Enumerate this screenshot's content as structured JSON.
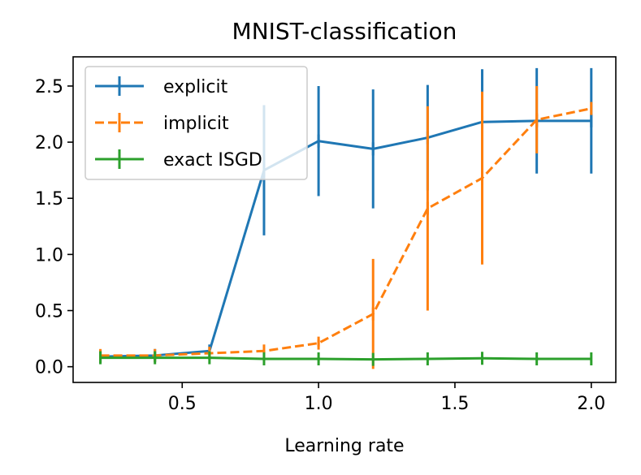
{
  "chart_data": {
    "type": "line",
    "title": "MNIST-classification",
    "xlabel": "Learning rate",
    "ylabel": "",
    "xlim": [
      0.1,
      2.09
    ],
    "ylim": [
      -0.14,
      2.76
    ],
    "xticks": [
      0.5,
      1.0,
      1.5,
      2.0
    ],
    "xtick_labels": [
      "0.5",
      "1.0",
      "1.5",
      "2.0"
    ],
    "yticks": [
      0.0,
      0.5,
      1.0,
      1.5,
      2.0,
      2.5
    ],
    "ytick_labels": [
      "0.0",
      "0.5",
      "1.0",
      "1.5",
      "2.0",
      "2.5"
    ],
    "x": [
      0.2,
      0.4,
      0.6,
      0.8,
      1.0,
      1.2,
      1.4,
      1.6,
      1.8,
      2.0
    ],
    "legend_position": "top-left",
    "series": [
      {
        "name": "explicit",
        "color": "#1f77b4",
        "dashed": false,
        "values": [
          0.09,
          0.1,
          0.14,
          1.75,
          2.01,
          1.94,
          2.04,
          2.18,
          2.19,
          2.19
        ],
        "errors": [
          0.0,
          0.0,
          0.0,
          0.58,
          0.49,
          0.53,
          0.47,
          0.47,
          0.47,
          0.47
        ]
      },
      {
        "name": "implicit",
        "color": "#ff7f0e",
        "dashed": true,
        "values": [
          0.1,
          0.1,
          0.12,
          0.14,
          0.21,
          0.47,
          1.41,
          1.68,
          2.2,
          2.3
        ],
        "errors": [
          0.0,
          0.0,
          0.0,
          0.0,
          0.03,
          0.49,
          0.91,
          0.77,
          0.3,
          0.0
        ]
      },
      {
        "name": "exact ISGD",
        "color": "#2ca02c",
        "dashed": false,
        "values": [
          0.08,
          0.08,
          0.08,
          0.07,
          0.07,
          0.065,
          0.07,
          0.075,
          0.07,
          0.07
        ],
        "errors": [
          0,
          0,
          0,
          0,
          0,
          0,
          0,
          0,
          0,
          0
        ]
      }
    ]
  }
}
